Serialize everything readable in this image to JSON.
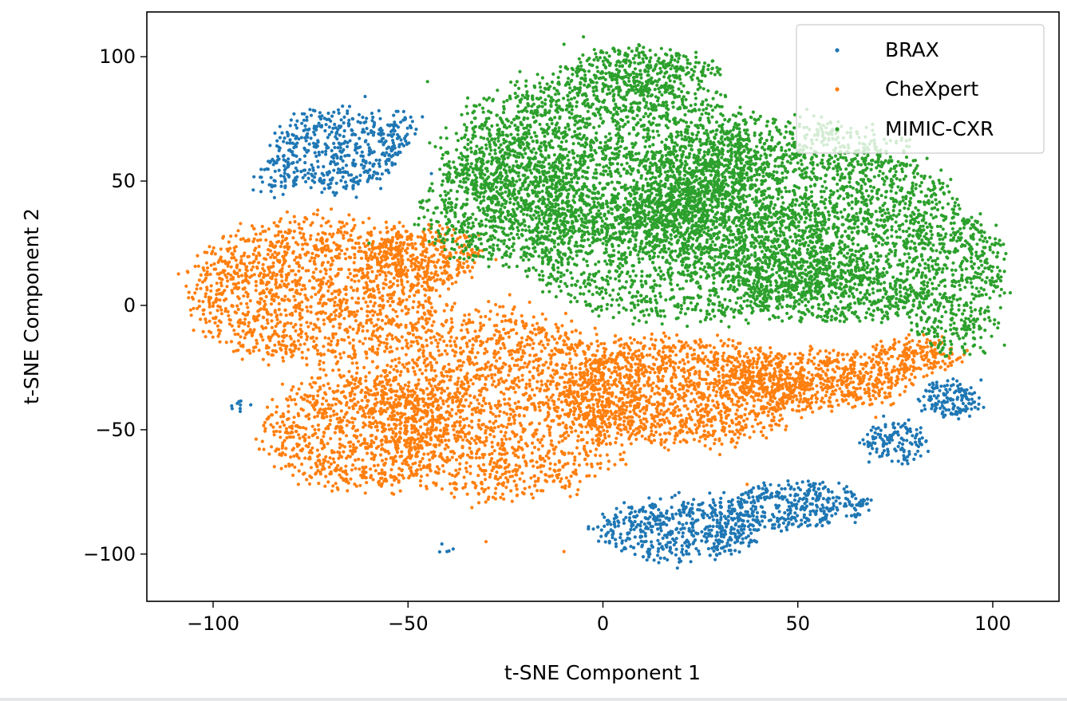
{
  "chart_data": {
    "type": "scatter",
    "title": "",
    "xlabel": "t-SNE Component 1",
    "ylabel": "t-SNE Component 2",
    "xlim": [
      -117,
      117
    ],
    "ylim": [
      -119,
      118
    ],
    "xticks": [
      -100,
      -50,
      0,
      50,
      100
    ],
    "yticks": [
      -100,
      -50,
      0,
      50,
      100
    ],
    "xtick_labels": [
      "−100",
      "−50",
      "0",
      "50",
      "100"
    ],
    "ytick_labels": [
      "−100",
      "−50",
      "0",
      "50",
      "100"
    ],
    "grid": false,
    "legend_position": "top-right",
    "series": [
      {
        "name": "BRAX",
        "color": "#1f77b4",
        "clusters": [
          {
            "cx": -68,
            "cy": 63,
            "rx": 16,
            "ry": 17,
            "n": 420
          },
          {
            "cx": -84,
            "cy": 52,
            "rx": 6,
            "ry": 8,
            "n": 60
          },
          {
            "cx": -52,
            "cy": 70,
            "rx": 5,
            "ry": 8,
            "n": 55
          },
          {
            "cx": 20,
            "cy": -90,
            "rx": 22,
            "ry": 12,
            "n": 520
          },
          {
            "cx": 48,
            "cy": -80,
            "rx": 20,
            "ry": 9,
            "n": 360
          },
          {
            "cx": 75,
            "cy": -55,
            "rx": 9,
            "ry": 8,
            "n": 130
          },
          {
            "cx": 89,
            "cy": -38,
            "rx": 7,
            "ry": 7,
            "n": 140
          },
          {
            "cx": -93,
            "cy": -40,
            "rx": 2,
            "ry": 2,
            "n": 8
          },
          {
            "cx": -40,
            "cy": -99,
            "rx": 1,
            "ry": 1,
            "n": 4
          }
        ],
        "sample_points": [
          [
            -65,
            80
          ],
          [
            -61,
            84
          ],
          [
            -74,
            72
          ],
          [
            -82,
            60
          ],
          [
            -53,
            78
          ],
          [
            -57,
            47
          ],
          [
            -44,
            53
          ],
          [
            20,
            -90
          ],
          [
            10,
            -97
          ],
          [
            57,
            -73
          ],
          [
            74,
            -53
          ],
          [
            91,
            -37
          ],
          [
            97,
            -30
          ],
          [
            -93,
            -40
          ],
          [
            -40,
            -99
          ]
        ]
      },
      {
        "name": "CheXpert",
        "color": "#ff7f0e",
        "clusters": [
          {
            "cx": -73,
            "cy": 5,
            "rx": 33,
            "ry": 30,
            "n": 1500
          },
          {
            "cx": -62,
            "cy": -50,
            "rx": 25,
            "ry": 25,
            "n": 900
          },
          {
            "cx": -25,
            "cy": -40,
            "rx": 36,
            "ry": 38,
            "n": 1800
          },
          {
            "cx": 20,
            "cy": -35,
            "rx": 32,
            "ry": 22,
            "n": 1300
          },
          {
            "cx": 55,
            "cy": -30,
            "rx": 25,
            "ry": 12,
            "n": 650
          },
          {
            "cx": 80,
            "cy": -20,
            "rx": 12,
            "ry": 7,
            "n": 180
          },
          {
            "cx": -45,
            "cy": 20,
            "rx": 14,
            "ry": 12,
            "n": 300
          }
        ],
        "sample_points": [
          [
            -104,
            20
          ],
          [
            -105,
            -10
          ],
          [
            -90,
            32
          ],
          [
            -60,
            35
          ],
          [
            -40,
            0
          ],
          [
            -30,
            -95
          ],
          [
            -10,
            -99
          ],
          [
            30,
            -60
          ],
          [
            37,
            -72
          ],
          [
            70,
            -45
          ],
          [
            83,
            -15
          ]
        ]
      },
      {
        "name": "MIMIC-CXR",
        "color": "#2ca02c",
        "clusters": [
          {
            "cx": 0,
            "cy": 60,
            "rx": 40,
            "ry": 35,
            "n": 2300
          },
          {
            "cx": 48,
            "cy": 40,
            "rx": 40,
            "ry": 35,
            "n": 2300
          },
          {
            "cx": 20,
            "cy": 20,
            "rx": 40,
            "ry": 28,
            "n": 1400
          },
          {
            "cx": -25,
            "cy": 40,
            "rx": 22,
            "ry": 24,
            "n": 700
          },
          {
            "cx": 90,
            "cy": 10,
            "rx": 13,
            "ry": 30,
            "n": 550
          },
          {
            "cx": 10,
            "cy": 95,
            "rx": 20,
            "ry": 9,
            "n": 300
          },
          {
            "cx": 60,
            "cy": 5,
            "rx": 25,
            "ry": 12,
            "n": 500
          }
        ],
        "sample_points": [
          [
            -5,
            108
          ],
          [
            -10,
            105
          ],
          [
            30,
            95
          ],
          [
            -45,
            90
          ],
          [
            103,
            5
          ],
          [
            103,
            -16
          ],
          [
            98,
            -10
          ],
          [
            -35,
            80
          ],
          [
            -60,
            25
          ]
        ]
      }
    ]
  }
}
